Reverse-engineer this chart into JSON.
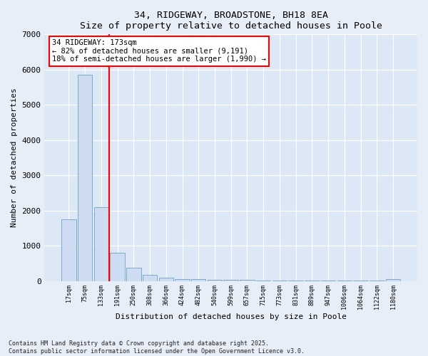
{
  "title1": "34, RIDGEWAY, BROADSTONE, BH18 8EA",
  "title2": "Size of property relative to detached houses in Poole",
  "xlabel": "Distribution of detached houses by size in Poole",
  "ylabel": "Number of detached properties",
  "bar_labels": [
    "17sqm",
    "75sqm",
    "133sqm",
    "191sqm",
    "250sqm",
    "308sqm",
    "366sqm",
    "424sqm",
    "482sqm",
    "540sqm",
    "599sqm",
    "657sqm",
    "715sqm",
    "773sqm",
    "831sqm",
    "889sqm",
    "947sqm",
    "1006sqm",
    "1064sqm",
    "1122sqm",
    "1180sqm"
  ],
  "bar_values": [
    1750,
    5850,
    2100,
    800,
    380,
    170,
    100,
    60,
    45,
    35,
    28,
    22,
    18,
    15,
    12,
    10,
    8,
    7,
    6,
    5,
    60
  ],
  "bar_color": "#cddcf0",
  "bar_edge_color": "#7aaccf",
  "vline_color": "red",
  "vline_pos": 2.5,
  "annotation_title": "34 RIDGEWAY: 173sqm",
  "annotation_line1": "← 82% of detached houses are smaller (9,191)",
  "annotation_line2": "18% of semi-detached houses are larger (1,990) →",
  "ylim": [
    0,
    7000
  ],
  "yticks": [
    0,
    1000,
    2000,
    3000,
    4000,
    5000,
    6000,
    7000
  ],
  "footer1": "Contains HM Land Registry data © Crown copyright and database right 2025.",
  "footer2": "Contains public sector information licensed under the Open Government Licence v3.0.",
  "bg_color": "#e8eef8",
  "plot_bg_color": "#dce8f5"
}
